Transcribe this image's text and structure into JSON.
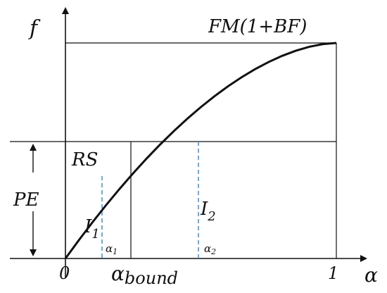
{
  "chart_data": {
    "type": "line",
    "title": "",
    "xlabel": "α",
    "ylabel": "f",
    "x_ticks": [
      "0",
      "α",
      "bound",
      "1"
    ],
    "curve": {
      "x": [
        0,
        0.05,
        0.1,
        0.15,
        0.2,
        0.25,
        0.3,
        0.35,
        0.4,
        0.45,
        0.5,
        0.55,
        0.6,
        0.65,
        0.7,
        0.75,
        0.8,
        0.85,
        0.9,
        0.95,
        1.0
      ]
    },
    "annotations": {
      "max_label": "FM(1+BF)",
      "rs_label": "RS",
      "pe_label": "PE",
      "i1": {
        "base": "I",
        "sub": "1"
      },
      "i2": {
        "base": "I",
        "sub": "2"
      },
      "alpha1": {
        "base": "α",
        "sub": "1"
      },
      "alpha2": {
        "base": "α",
        "sub": "2"
      }
    },
    "colors": {
      "axis": "#111111",
      "curve": "#111111",
      "dashed": "#2e86de"
    }
  }
}
